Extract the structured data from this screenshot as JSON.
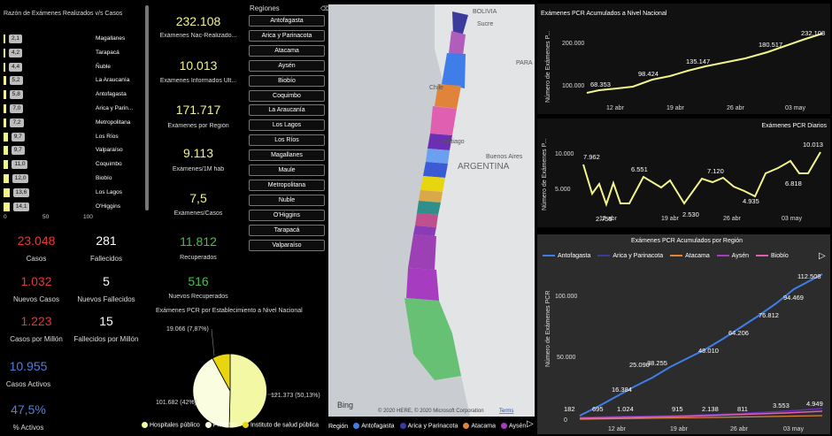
{
  "ratio_chart": {
    "title": "Razón de Exámenes Realizados v/s Casos",
    "rows": [
      {
        "region": "Magallanes",
        "value": 2.1,
        "label": "2,1"
      },
      {
        "region": "Tarapacá",
        "value": 4.2,
        "label": "4,2"
      },
      {
        "region": "Ñuble",
        "value": 4.4,
        "label": "4,4"
      },
      {
        "region": "La Araucanía",
        "value": 5.2,
        "label": "5,2"
      },
      {
        "region": "Antofagasta",
        "value": 5.8,
        "label": "5,8"
      },
      {
        "region": "Arica y Parin...",
        "value": 7.0,
        "label": "7,0"
      },
      {
        "region": "Metropolitana",
        "value": 7.2,
        "label": "7,2"
      },
      {
        "region": "Los Ríos",
        "value": 9.7,
        "label": "9,7"
      },
      {
        "region": "Valparaíso",
        "value": 9.7,
        "label": "9,7"
      },
      {
        "region": "Coquimbo",
        "value": 11.0,
        "label": "11,0"
      },
      {
        "region": "Biobío",
        "value": 12.0,
        "label": "12,0"
      },
      {
        "region": "Los Lagos",
        "value": 13.6,
        "label": "13,6"
      },
      {
        "region": "O'Higgins",
        "value": 14.1,
        "label": "14,1"
      }
    ],
    "axis_ticks": [
      "0",
      "50",
      "100"
    ]
  },
  "kpis_left": [
    {
      "value": "23.048",
      "label": "Casos",
      "color": "#e53935"
    },
    {
      "value": "281",
      "label": "Fallecidos",
      "color": "#ffffff"
    },
    {
      "value": "1.032",
      "label": "Nuevos Casos",
      "color": "#e53935"
    },
    {
      "value": "5",
      "label": "Nuevos Fallecidos",
      "color": "#ffffff"
    },
    {
      "value": "1.223",
      "label": "Casos por Millón",
      "color": "#e53935"
    },
    {
      "value": "15",
      "label": "Fallecidos por Millón",
      "color": "#ffffff"
    },
    {
      "value": "10.955",
      "label": "Casos Activos",
      "color": "#4f7fe0"
    },
    {
      "value": "47,5%",
      "label": "% Activos",
      "color": "#4f7fe0"
    }
  ],
  "kpis_middle": [
    {
      "value": "232.108",
      "label": "Exámenes Nac-Realizado...",
      "color": "#f3f58b"
    },
    {
      "value": "10.013",
      "label": "Exámenes Informados Ult...",
      "color": "#f3f58b"
    },
    {
      "value": "171.717",
      "label": "Exámenes por Región",
      "color": "#f3f58b"
    },
    {
      "value": "9.113",
      "label": "Exámenes/1M hab",
      "color": "#f3f58b"
    },
    {
      "value": "7,5",
      "label": "Exámenes/Casos",
      "color": "#f3f58b"
    },
    {
      "value": "11.812",
      "label": "Recuperados",
      "color": "#43c443"
    },
    {
      "value": "516",
      "label": "Nuevos Recuperados",
      "color": "#43c443"
    }
  ],
  "slicer": {
    "title": "Regiones",
    "items": [
      "Antofagasta",
      "Arica y Parinacota",
      "Atacama",
      "Aysén",
      "Biobío",
      "Coquimbo",
      "La Araucanía",
      "Los Lagos",
      "Los Ríos",
      "Magallanes",
      "Maule",
      "Metropolitana",
      "Nuble",
      "O'Higgins",
      "Tarapacá",
      "Valparaíso"
    ]
  },
  "pie": {
    "title": "Exámenes PCR por Establecimiento a Nivel Nacional",
    "label_private": "101.682 (42%)",
    "label_public": "121.373 (50,13%)",
    "label_inst": "19.066 (7,87%)",
    "legend": [
      "Hospitales público",
      "Privados",
      "Instituto de salud pública"
    ]
  },
  "map": {
    "labels": {
      "bolivia": "BOLIVIA",
      "sucre": "Sucre",
      "argentina": "ARGENTINA",
      "buenos_aires": "Buenos Aires",
      "chile": "Chile",
      "santiago": "Santiago",
      "paraguay": "PARA"
    },
    "bing": "Bing",
    "copyright": "© 2020 HERE, © 2020 Microsoft Corporation",
    "terms": "Terms",
    "legend_title": "Región",
    "legend_items": [
      "Antofagasta",
      "Arica y Parinacota",
      "Atacama",
      "Aysén"
    ]
  },
  "chart1": {
    "title": "Exámenes PCR Acumulados a Nivel Nacional",
    "ylabel": "Número de Exámenes P...",
    "yticks": [
      "100.000",
      "200.000"
    ],
    "xticks": [
      "12 abr",
      "19 abr",
      "26 abr",
      "03 may"
    ],
    "data_labels": [
      "68.353",
      "98.424",
      "135.147",
      "180.517",
      "232.108"
    ]
  },
  "chart2": {
    "title": "Exámenes PCR Diarios",
    "ylabel": "Número de Exámenes P...",
    "yticks": [
      "5.000",
      "10.000"
    ],
    "xticks": [
      "12 abr",
      "19 abr",
      "26 abr",
      "03 may"
    ],
    "data_labels": [
      "7.962",
      "2.759",
      "6.551",
      "2.530",
      "7.120",
      "4.935",
      "6.818",
      "10.013"
    ]
  },
  "chart3": {
    "title": "Exámenes PCR Acumulados por Región",
    "ylabel": "Número de Exámenes PCR",
    "yticks": [
      "0",
      "50.000",
      "100.000"
    ],
    "xticks": [
      "12 abr",
      "19 abr",
      "26 abr",
      "03 may"
    ],
    "legend": [
      "Antofagasta",
      "Arica y Parinacota",
      "Atacama",
      "Aysén",
      "Biobío"
    ],
    "data_labels": [
      "16.384",
      "25.090",
      "38.255",
      "48.010",
      "64.206",
      "76.812",
      "94.469",
      "112.508"
    ],
    "low_labels": [
      "182",
      "695",
      "1.024",
      "915",
      "2.138",
      "811",
      "3.553",
      "4.949"
    ]
  },
  "colors": {
    "accent_yellow": "#f3f58b",
    "blue_line": "#3f7ee8",
    "purple_line": "#6b2fb3",
    "orange_line": "#e0833b",
    "pink_line": "#e05fb1",
    "pie_light": "#f3f8a4",
    "pie_white": "#fbfde0",
    "pie_gold": "#e6d50f"
  }
}
